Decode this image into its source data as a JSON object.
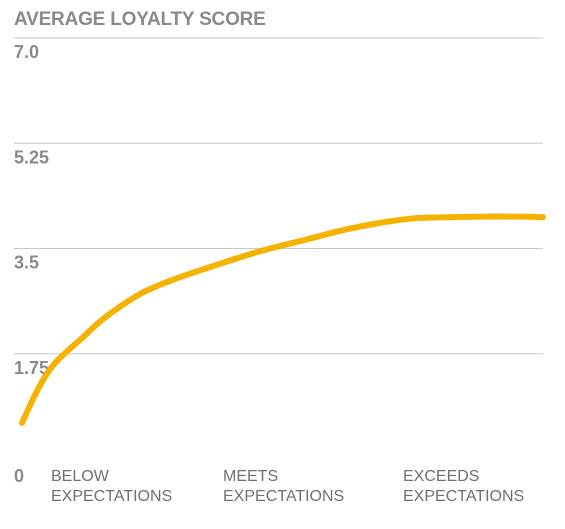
{
  "chart_data": {
    "type": "line",
    "title": "AVERAGE LOYALTY SCORE",
    "xlabel": "",
    "ylabel": "",
    "ylim": [
      0,
      7.0
    ],
    "yticks": [
      "0",
      "1.75",
      "3.5",
      "5.25",
      "7.0"
    ],
    "ytick_values": [
      0,
      1.75,
      3.5,
      5.25,
      7.0
    ],
    "x_categories": [
      [
        "BELOW",
        "EXPECTATIONS"
      ],
      [
        "MEETS",
        "EXPECTATIONS"
      ],
      [
        "EXCEEDS",
        "EXPECTATIONS"
      ]
    ],
    "grid": true,
    "legend": "none",
    "series": [
      {
        "color": "#F5B200",
        "x": [
          0,
          0.033,
          0.064,
          0.114,
          0.159,
          0.228,
          0.296,
          0.364,
          0.455,
          0.546,
          0.614,
          0.683,
          0.751,
          0.819,
          0.887,
          0.956,
          1.0
        ],
        "y": [
          0.6,
          1.2,
          1.6,
          2.0,
          2.35,
          2.75,
          3.0,
          3.2,
          3.45,
          3.65,
          3.8,
          3.92,
          4.0,
          4.02,
          4.03,
          4.03,
          4.02
        ]
      }
    ]
  }
}
